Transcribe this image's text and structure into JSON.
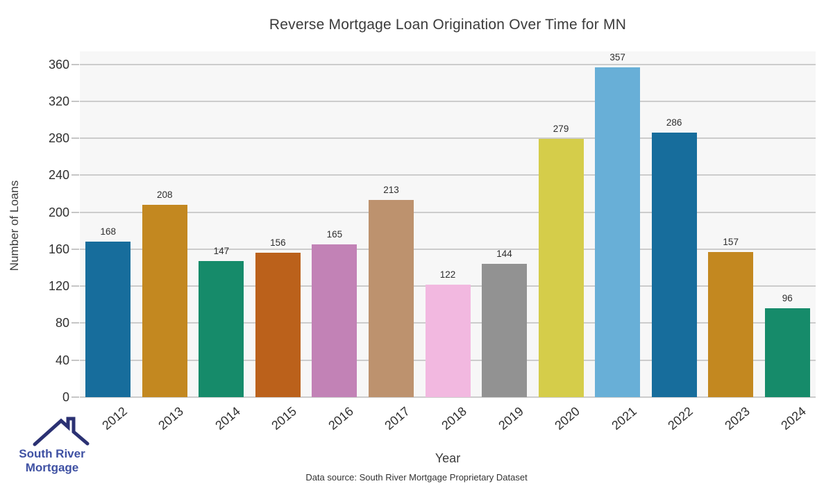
{
  "title": "Reverse Mortgage Loan Origination Over Time for MN",
  "caption": "Data source: South River Mortgage Proprietary Dataset",
  "chart_data": {
    "type": "bar",
    "title": "Reverse Mortgage Loan Origination Over Time for MN",
    "categories": [
      "2012",
      "2013",
      "2014",
      "2015",
      "2016",
      "2017",
      "2018",
      "2019",
      "2020",
      "2021",
      "2022",
      "2023",
      "2024"
    ],
    "values": [
      168,
      208,
      147,
      156,
      165,
      213,
      122,
      144,
      279,
      357,
      286,
      157,
      96
    ],
    "bar_colors": [
      "#176d9c",
      "#c38820",
      "#168b6a",
      "#bb611b",
      "#c282b6",
      "#bd926e",
      "#f2b8e0",
      "#929292",
      "#d5cd4a",
      "#68afd7",
      "#176d9c",
      "#c38820",
      "#168b6a"
    ],
    "xlabel": "Year",
    "ylabel": "Number of Loans",
    "ylim": [
      0,
      374
    ],
    "yticks": [
      0,
      40,
      80,
      120,
      160,
      200,
      240,
      280,
      320,
      360
    ],
    "grid": "horizontal",
    "legend": "none",
    "plot_bg": "#f7f7f7",
    "grid_color": "#cccccc",
    "value_labels": true,
    "x_label_rotation_deg": 40
  },
  "logo": {
    "icon": "house-roof-icon",
    "line1": "South River",
    "line2": "Mortgage",
    "text_color": "#3f51a3",
    "roof_color": "#2b3173"
  }
}
